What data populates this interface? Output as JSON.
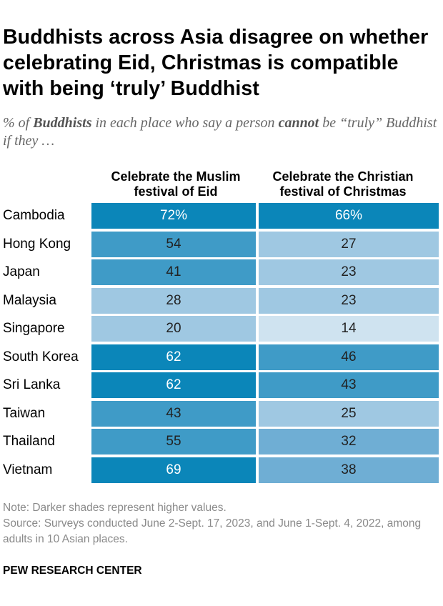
{
  "title": "Buddhists across Asia disagree on whether celebrating Eid, Christmas is compatible with being ‘truly’ Buddhist",
  "subtitle_parts": {
    "p1": "% of ",
    "b1": "Buddhists",
    "p2": " in each place who say a person ",
    "b2": "cannot",
    "p3": " be “truly” Buddhist if they …"
  },
  "chart_data": {
    "type": "table",
    "columns": [
      "Celebrate the Muslim festival of Eid",
      "Celebrate the Christian festival of Christmas"
    ],
    "rows": [
      {
        "place": "Cambodia",
        "eid": "72%",
        "christmas": "66%",
        "eid_value": 72,
        "christmas_value": 66
      },
      {
        "place": "Hong Kong",
        "eid": "54",
        "christmas": "27",
        "eid_value": 54,
        "christmas_value": 27
      },
      {
        "place": "Japan",
        "eid": "41",
        "christmas": "23",
        "eid_value": 41,
        "christmas_value": 23
      },
      {
        "place": "Malaysia",
        "eid": "28",
        "christmas": "23",
        "eid_value": 28,
        "christmas_value": 23
      },
      {
        "place": "Singapore",
        "eid": "20",
        "christmas": "14",
        "eid_value": 20,
        "christmas_value": 14
      },
      {
        "place": "South Korea",
        "eid": "62",
        "christmas": "46",
        "eid_value": 62,
        "christmas_value": 46
      },
      {
        "place": "Sri Lanka",
        "eid": "62",
        "christmas": "43",
        "eid_value": 62,
        "christmas_value": 43
      },
      {
        "place": "Taiwan",
        "eid": "43",
        "christmas": "25",
        "eid_value": 43,
        "christmas_value": 25
      },
      {
        "place": "Thailand",
        "eid": "55",
        "christmas": "32",
        "eid_value": 55,
        "christmas_value": 32
      },
      {
        "place": "Vietnam",
        "eid": "69",
        "christmas": "38",
        "eid_value": 69,
        "christmas_value": 38
      }
    ],
    "shade_colors": {
      "darkest": "#0b86b9",
      "dark": "#3f9bc7",
      "mid": "#6faed4",
      "light": "#9fc8e2",
      "lightest": "#cfe3f0"
    }
  },
  "note": "Note: Darker shades represent higher values.",
  "source": "Source: Surveys conducted June 2-Sept. 17, 2023, and June 1-Sept. 4, 2022, among adults in 10 Asian places.",
  "brand": "PEW RESEARCH CENTER"
}
